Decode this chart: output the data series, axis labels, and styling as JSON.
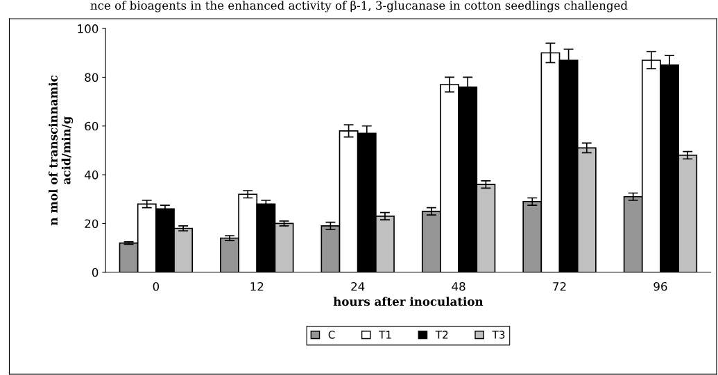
{
  "chart_data": {
    "type": "bar",
    "title": "nce of bioagents in the enhanced activity of β-1, 3-glucanase in cotton seedlings challenged",
    "xlabel": "hours after inoculation",
    "ylabel": "n mol of transcinnamic\nacid/min/g",
    "categories": [
      "0",
      "12",
      "24",
      "48",
      "72",
      "96"
    ],
    "series": [
      {
        "name": "C",
        "color": "#969696",
        "values": [
          12,
          14,
          19,
          25,
          29,
          31
        ],
        "errors": [
          0.5,
          1,
          1.5,
          1.5,
          1.5,
          1.5
        ]
      },
      {
        "name": "T1",
        "color": "#ffffff",
        "values": [
          28,
          32,
          58,
          77,
          90,
          87
        ],
        "errors": [
          1.5,
          1.5,
          2.5,
          3,
          4,
          3.5
        ]
      },
      {
        "name": "T2",
        "color": "#000000",
        "values": [
          26,
          28,
          57,
          76,
          87,
          85
        ],
        "errors": [
          1.5,
          1.5,
          3,
          4,
          4.5,
          4
        ]
      },
      {
        "name": "T3",
        "color": "#c0c0c0",
        "values": [
          18,
          20,
          23,
          36,
          51,
          48
        ],
        "errors": [
          1,
          1,
          1.5,
          1.5,
          2,
          1.5
        ]
      }
    ],
    "ylim": [
      0,
      100
    ],
    "yticks": [
      0,
      20,
      40,
      60,
      80,
      100
    ],
    "grid": false,
    "legend": "bottom"
  }
}
